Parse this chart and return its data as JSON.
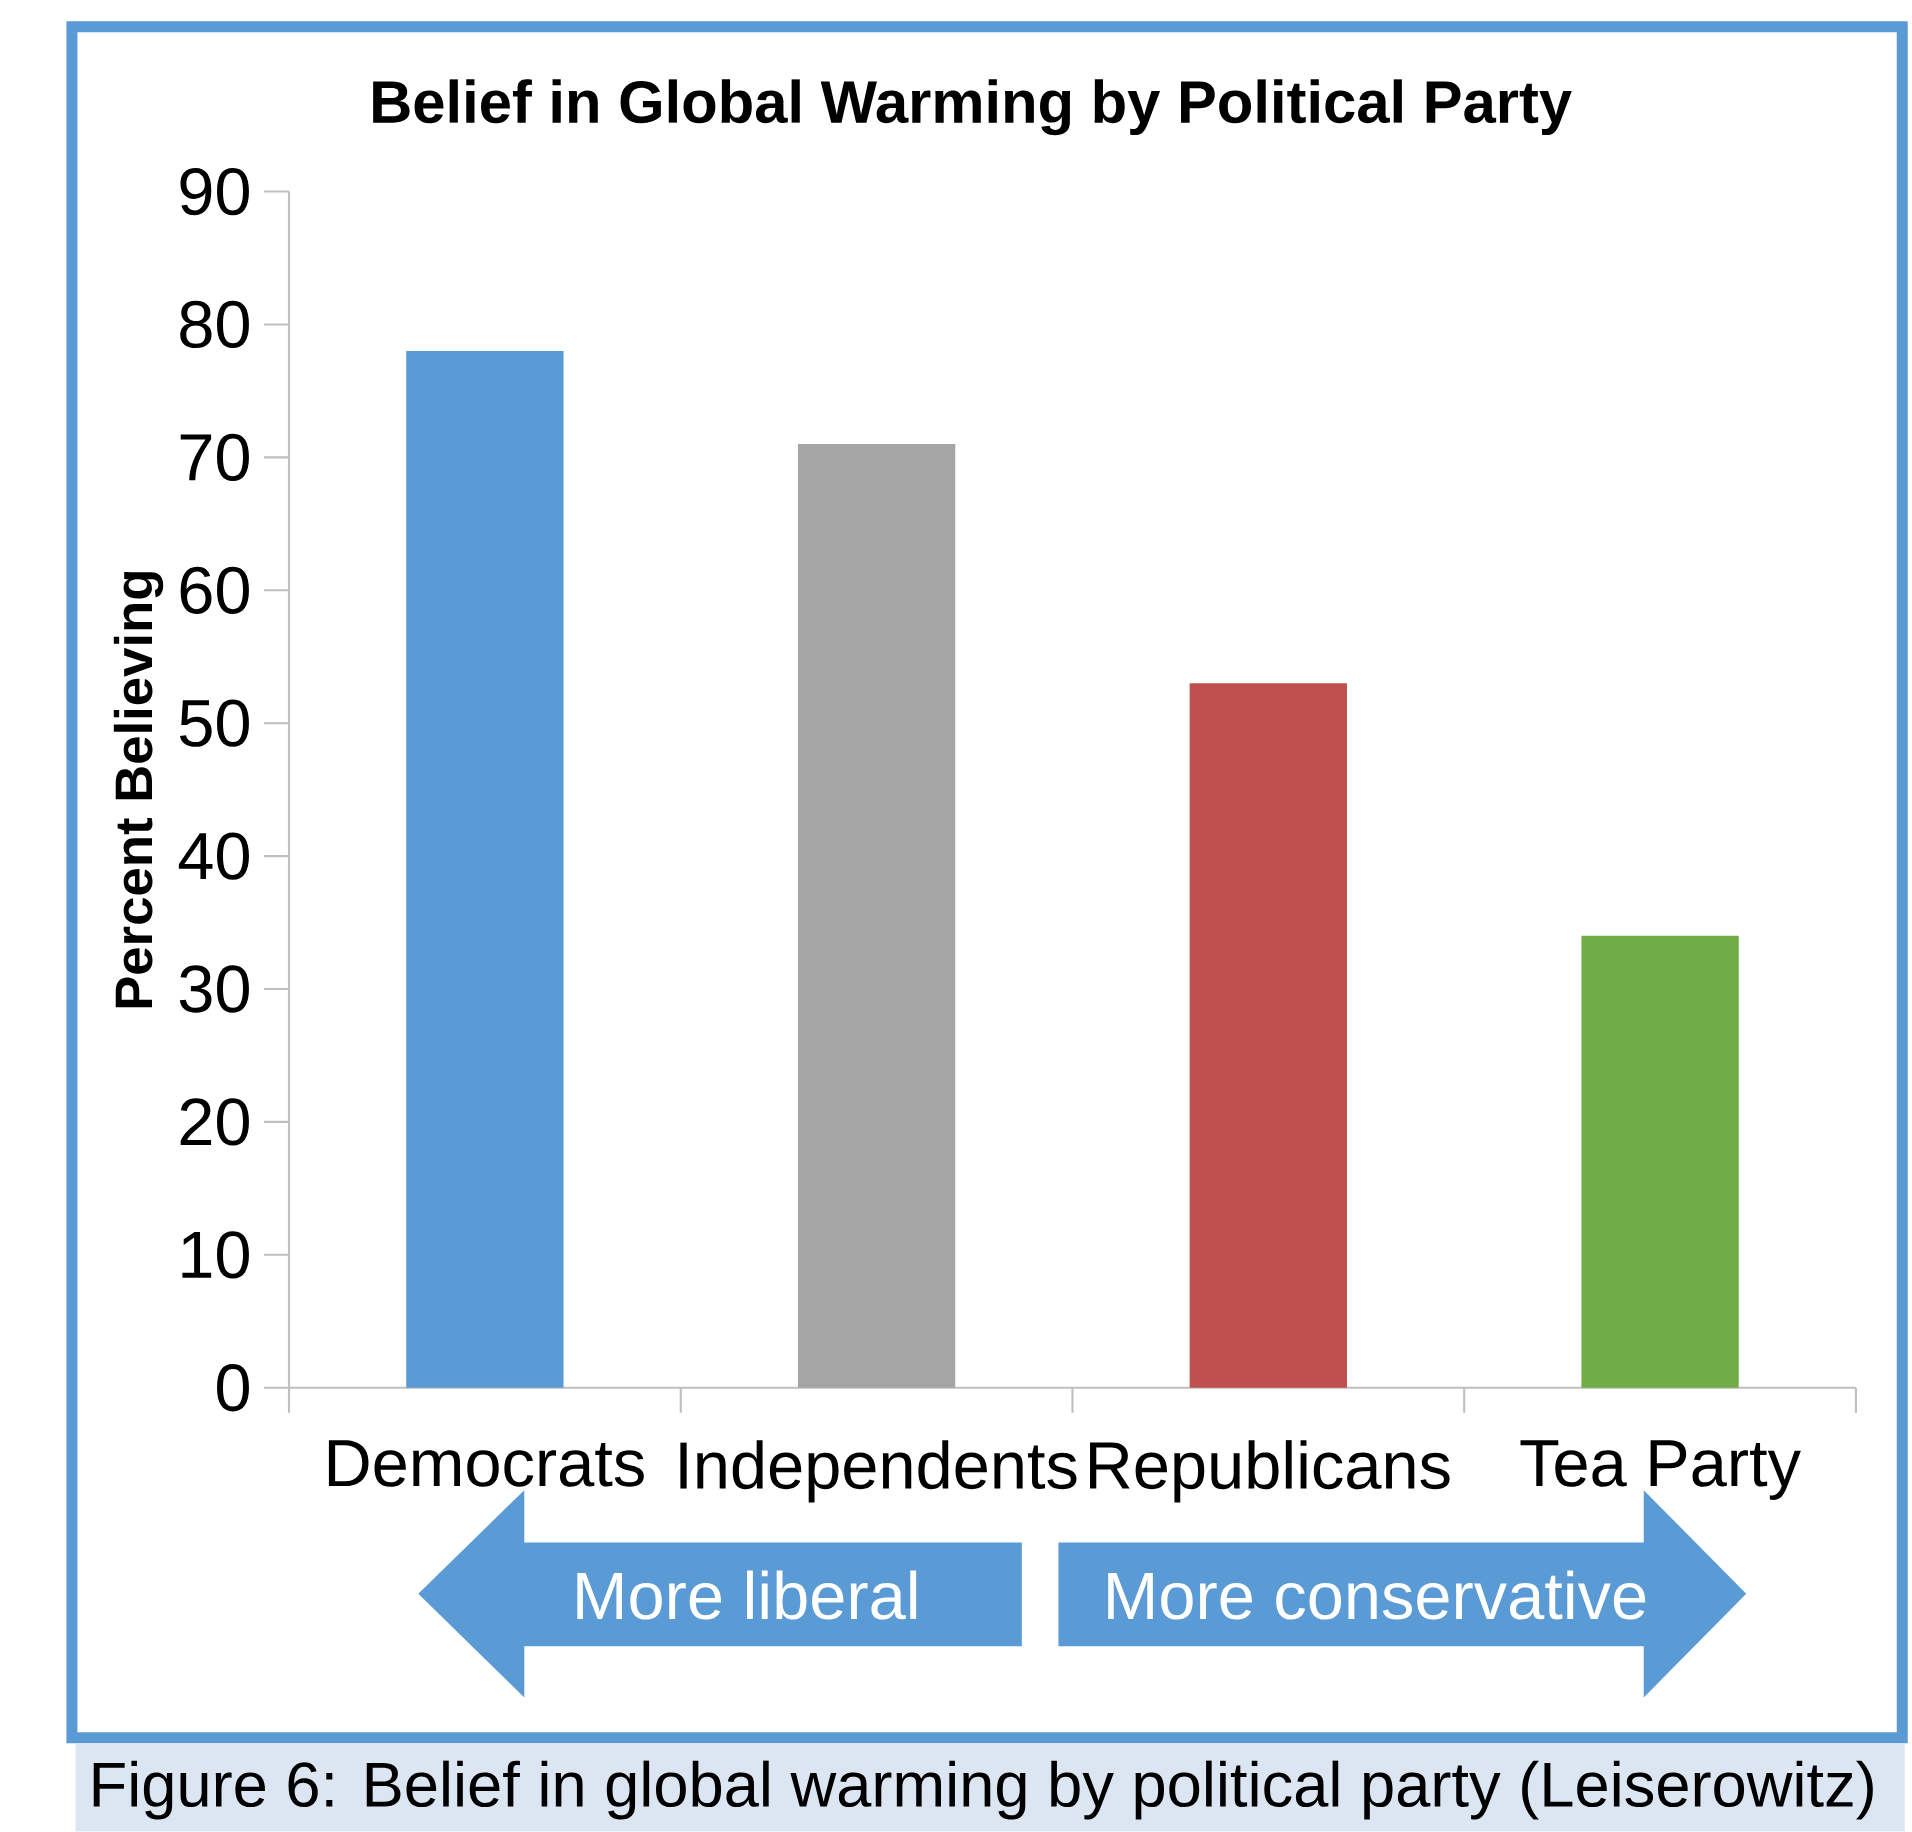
{
  "chart_data": {
    "type": "bar",
    "title": "Belief in Global Warming by Political Party",
    "ylabel": "Percent Believing",
    "categories": [
      "Democrats",
      "Independents",
      "Republicans",
      "Tea Party"
    ],
    "values": [
      78,
      71,
      53,
      34
    ],
    "colors": [
      "#5b9bd5",
      "#a5a5a5",
      "#c0504d",
      "#70ad47"
    ],
    "ylim": [
      0,
      90
    ],
    "yticks": [
      0,
      10,
      20,
      30,
      40,
      50,
      60,
      70,
      80,
      90
    ],
    "annotations": [
      "More liberal",
      "More conservative",
      "Figure 6: Belief in global warming by political party (Leiserowitz)"
    ]
  }
}
